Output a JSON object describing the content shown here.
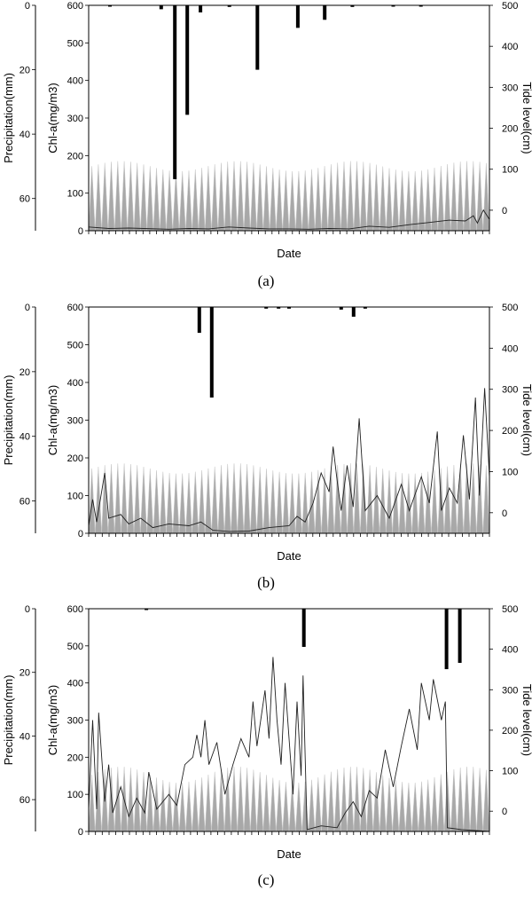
{
  "figure": {
    "panels": [
      {
        "caption": "(a)"
      },
      {
        "caption": "(b)"
      },
      {
        "caption": "(c)"
      }
    ]
  },
  "colors": {
    "tide_fill": "#a8a8a8",
    "chla_line": "#202020",
    "precip_bar": "#000000",
    "axis": "#000000",
    "background": "#ffffff"
  },
  "chart_data": [
    {
      "type": "bar",
      "panel": "a",
      "xlabel": "Date",
      "ylabel_left_outer": "Precipitation(mm)",
      "ylabel_left": "Chl-a(mg/m3)",
      "ylabel_right": "Tide level(cm)",
      "precip_axis": {
        "range": [
          0,
          70
        ],
        "ticks": [
          "0",
          "20",
          "40",
          "60"
        ],
        "inverted": true
      },
      "chla_axis": {
        "range": [
          0,
          600
        ],
        "ticks": [
          "0",
          "100",
          "200",
          "300",
          "400",
          "500",
          "600"
        ]
      },
      "tide_axis": {
        "range": [
          -50,
          500
        ],
        "ticks": [
          "0",
          "100",
          "200",
          "300",
          "400",
          "500"
        ]
      },
      "precipitation": [
        {
          "x": 0.053,
          "value": 0.3
        },
        {
          "x": 0.181,
          "value": 1.2
        },
        {
          "x": 0.215,
          "value": 54
        },
        {
          "x": 0.246,
          "value": 34
        },
        {
          "x": 0.279,
          "value": 2.2
        },
        {
          "x": 0.351,
          "value": 0.5
        },
        {
          "x": 0.421,
          "value": 20
        },
        {
          "x": 0.522,
          "value": 7
        },
        {
          "x": 0.589,
          "value": 4.5
        },
        {
          "x": 0.658,
          "value": 0.5
        },
        {
          "x": 0.76,
          "value": 0.3
        },
        {
          "x": 0.829,
          "value": 0.3
        }
      ],
      "tide": {
        "cycles": 62,
        "low": -50,
        "high_min": 95,
        "high_max": 120
      },
      "chla": [
        {
          "x": 0.0,
          "y": 10
        },
        {
          "x": 0.05,
          "y": 6
        },
        {
          "x": 0.1,
          "y": 7
        },
        {
          "x": 0.2,
          "y": 4
        },
        {
          "x": 0.25,
          "y": 6
        },
        {
          "x": 0.3,
          "y": 5
        },
        {
          "x": 0.35,
          "y": 10
        },
        {
          "x": 0.4,
          "y": 7
        },
        {
          "x": 0.45,
          "y": 5
        },
        {
          "x": 0.5,
          "y": 5
        },
        {
          "x": 0.55,
          "y": 4
        },
        {
          "x": 0.6,
          "y": 6
        },
        {
          "x": 0.65,
          "y": 5
        },
        {
          "x": 0.7,
          "y": 12
        },
        {
          "x": 0.75,
          "y": 9
        },
        {
          "x": 0.8,
          "y": 16
        },
        {
          "x": 0.85,
          "y": 22
        },
        {
          "x": 0.9,
          "y": 28
        },
        {
          "x": 0.94,
          "y": 26
        },
        {
          "x": 0.96,
          "y": 40
        },
        {
          "x": 0.97,
          "y": 20
        },
        {
          "x": 0.985,
          "y": 55
        },
        {
          "x": 1.0,
          "y": 30
        }
      ]
    },
    {
      "type": "bar",
      "panel": "b",
      "xlabel": "Date",
      "ylabel_left_outer": "Precipitation(mm)",
      "ylabel_left": "Chl-a(mg/m3)",
      "ylabel_right": "Tide level(cm)",
      "precip_axis": {
        "range": [
          0,
          70
        ],
        "ticks": [
          "0",
          "20",
          "40",
          "60"
        ],
        "inverted": true
      },
      "chla_axis": {
        "range": [
          0,
          600
        ],
        "ticks": [
          "0",
          "100",
          "200",
          "300",
          "400",
          "500",
          "600"
        ]
      },
      "tide_axis": {
        "range": [
          -50,
          500
        ],
        "ticks": [
          "0",
          "100",
          "200",
          "300",
          "400",
          "500"
        ]
      },
      "precipitation": [
        {
          "x": 0.276,
          "value": 8
        },
        {
          "x": 0.307,
          "value": 28
        },
        {
          "x": 0.443,
          "value": 0.5
        },
        {
          "x": 0.474,
          "value": 0.5
        },
        {
          "x": 0.5,
          "value": 0.5
        },
        {
          "x": 0.63,
          "value": 0.8
        },
        {
          "x": 0.661,
          "value": 3
        },
        {
          "x": 0.69,
          "value": 0.5
        }
      ],
      "tide": {
        "cycles": 62,
        "low": -50,
        "high_min": 95,
        "high_max": 120
      },
      "chla": [
        {
          "x": 0.0,
          "y": 20
        },
        {
          "x": 0.01,
          "y": 90
        },
        {
          "x": 0.02,
          "y": 30
        },
        {
          "x": 0.04,
          "y": 160
        },
        {
          "x": 0.05,
          "y": 40
        },
        {
          "x": 0.08,
          "y": 50
        },
        {
          "x": 0.1,
          "y": 25
        },
        {
          "x": 0.13,
          "y": 40
        },
        {
          "x": 0.16,
          "y": 15
        },
        {
          "x": 0.2,
          "y": 25
        },
        {
          "x": 0.25,
          "y": 20
        },
        {
          "x": 0.28,
          "y": 30
        },
        {
          "x": 0.31,
          "y": 8
        },
        {
          "x": 0.35,
          "y": 5
        },
        {
          "x": 0.4,
          "y": 6
        },
        {
          "x": 0.45,
          "y": 15
        },
        {
          "x": 0.5,
          "y": 20
        },
        {
          "x": 0.52,
          "y": 45
        },
        {
          "x": 0.54,
          "y": 30
        },
        {
          "x": 0.56,
          "y": 80
        },
        {
          "x": 0.58,
          "y": 160
        },
        {
          "x": 0.6,
          "y": 110
        },
        {
          "x": 0.61,
          "y": 230
        },
        {
          "x": 0.62,
          "y": 140
        },
        {
          "x": 0.63,
          "y": 60
        },
        {
          "x": 0.645,
          "y": 180
        },
        {
          "x": 0.66,
          "y": 70
        },
        {
          "x": 0.675,
          "y": 305
        },
        {
          "x": 0.69,
          "y": 60
        },
        {
          "x": 0.72,
          "y": 100
        },
        {
          "x": 0.75,
          "y": 40
        },
        {
          "x": 0.78,
          "y": 130
        },
        {
          "x": 0.8,
          "y": 60
        },
        {
          "x": 0.83,
          "y": 150
        },
        {
          "x": 0.85,
          "y": 80
        },
        {
          "x": 0.87,
          "y": 270
        },
        {
          "x": 0.88,
          "y": 60
        },
        {
          "x": 0.9,
          "y": 120
        },
        {
          "x": 0.92,
          "y": 80
        },
        {
          "x": 0.935,
          "y": 260
        },
        {
          "x": 0.95,
          "y": 90
        },
        {
          "x": 0.965,
          "y": 360
        },
        {
          "x": 0.975,
          "y": 100
        },
        {
          "x": 0.988,
          "y": 385
        },
        {
          "x": 1.0,
          "y": 150
        }
      ]
    },
    {
      "type": "bar",
      "panel": "c",
      "xlabel": "Date",
      "ylabel_left_outer": "Precipitation(mm)",
      "ylabel_left": "Chl-a(mg/m3)",
      "ylabel_right": "Tide level(cm)",
      "precip_axis": {
        "range": [
          0,
          70
        ],
        "ticks": [
          "0",
          "20",
          "40",
          "60"
        ],
        "inverted": true
      },
      "chla_axis": {
        "range": [
          0,
          600
        ],
        "ticks": [
          "0",
          "100",
          "200",
          "300",
          "400",
          "500",
          "600"
        ]
      },
      "tide_axis": {
        "range": [
          -50,
          500
        ],
        "ticks": [
          "0",
          "100",
          "200",
          "300",
          "400",
          "500"
        ]
      },
      "precipitation": [
        {
          "x": 0.144,
          "value": 0.3
        },
        {
          "x": 0.537,
          "value": 12
        },
        {
          "x": 0.893,
          "value": 19
        },
        {
          "x": 0.926,
          "value": 17
        }
      ],
      "tide": {
        "cycles": 62,
        "low": -50,
        "high_min": 70,
        "high_max": 110
      },
      "chla": [
        {
          "x": 0.0,
          "y": 60
        },
        {
          "x": 0.01,
          "y": 300
        },
        {
          "x": 0.02,
          "y": 60
        },
        {
          "x": 0.025,
          "y": 320
        },
        {
          "x": 0.04,
          "y": 80
        },
        {
          "x": 0.05,
          "y": 180
        },
        {
          "x": 0.06,
          "y": 50
        },
        {
          "x": 0.08,
          "y": 120
        },
        {
          "x": 0.1,
          "y": 40
        },
        {
          "x": 0.12,
          "y": 90
        },
        {
          "x": 0.14,
          "y": 50
        },
        {
          "x": 0.15,
          "y": 160
        },
        {
          "x": 0.17,
          "y": 60
        },
        {
          "x": 0.2,
          "y": 100
        },
        {
          "x": 0.22,
          "y": 70
        },
        {
          "x": 0.24,
          "y": 180
        },
        {
          "x": 0.26,
          "y": 200
        },
        {
          "x": 0.27,
          "y": 260
        },
        {
          "x": 0.28,
          "y": 200
        },
        {
          "x": 0.29,
          "y": 300
        },
        {
          "x": 0.3,
          "y": 180
        },
        {
          "x": 0.32,
          "y": 240
        },
        {
          "x": 0.34,
          "y": 100
        },
        {
          "x": 0.36,
          "y": 180
        },
        {
          "x": 0.38,
          "y": 250
        },
        {
          "x": 0.4,
          "y": 200
        },
        {
          "x": 0.41,
          "y": 350
        },
        {
          "x": 0.42,
          "y": 230
        },
        {
          "x": 0.44,
          "y": 380
        },
        {
          "x": 0.45,
          "y": 250
        },
        {
          "x": 0.46,
          "y": 470
        },
        {
          "x": 0.47,
          "y": 300
        },
        {
          "x": 0.48,
          "y": 180
        },
        {
          "x": 0.49,
          "y": 400
        },
        {
          "x": 0.5,
          "y": 250
        },
        {
          "x": 0.51,
          "y": 100
        },
        {
          "x": 0.52,
          "y": 350
        },
        {
          "x": 0.53,
          "y": 150
        },
        {
          "x": 0.535,
          "y": 420
        },
        {
          "x": 0.545,
          "y": 5
        },
        {
          "x": 0.58,
          "y": 15
        },
        {
          "x": 0.62,
          "y": 10
        },
        {
          "x": 0.64,
          "y": 50
        },
        {
          "x": 0.66,
          "y": 80
        },
        {
          "x": 0.68,
          "y": 40
        },
        {
          "x": 0.7,
          "y": 110
        },
        {
          "x": 0.72,
          "y": 90
        },
        {
          "x": 0.74,
          "y": 220
        },
        {
          "x": 0.76,
          "y": 120
        },
        {
          "x": 0.78,
          "y": 230
        },
        {
          "x": 0.8,
          "y": 330
        },
        {
          "x": 0.82,
          "y": 220
        },
        {
          "x": 0.83,
          "y": 400
        },
        {
          "x": 0.85,
          "y": 300
        },
        {
          "x": 0.86,
          "y": 410
        },
        {
          "x": 0.88,
          "y": 300
        },
        {
          "x": 0.89,
          "y": 350
        },
        {
          "x": 0.895,
          "y": 10
        },
        {
          "x": 0.93,
          "y": 5
        },
        {
          "x": 1.0,
          "y": 0
        }
      ]
    }
  ]
}
